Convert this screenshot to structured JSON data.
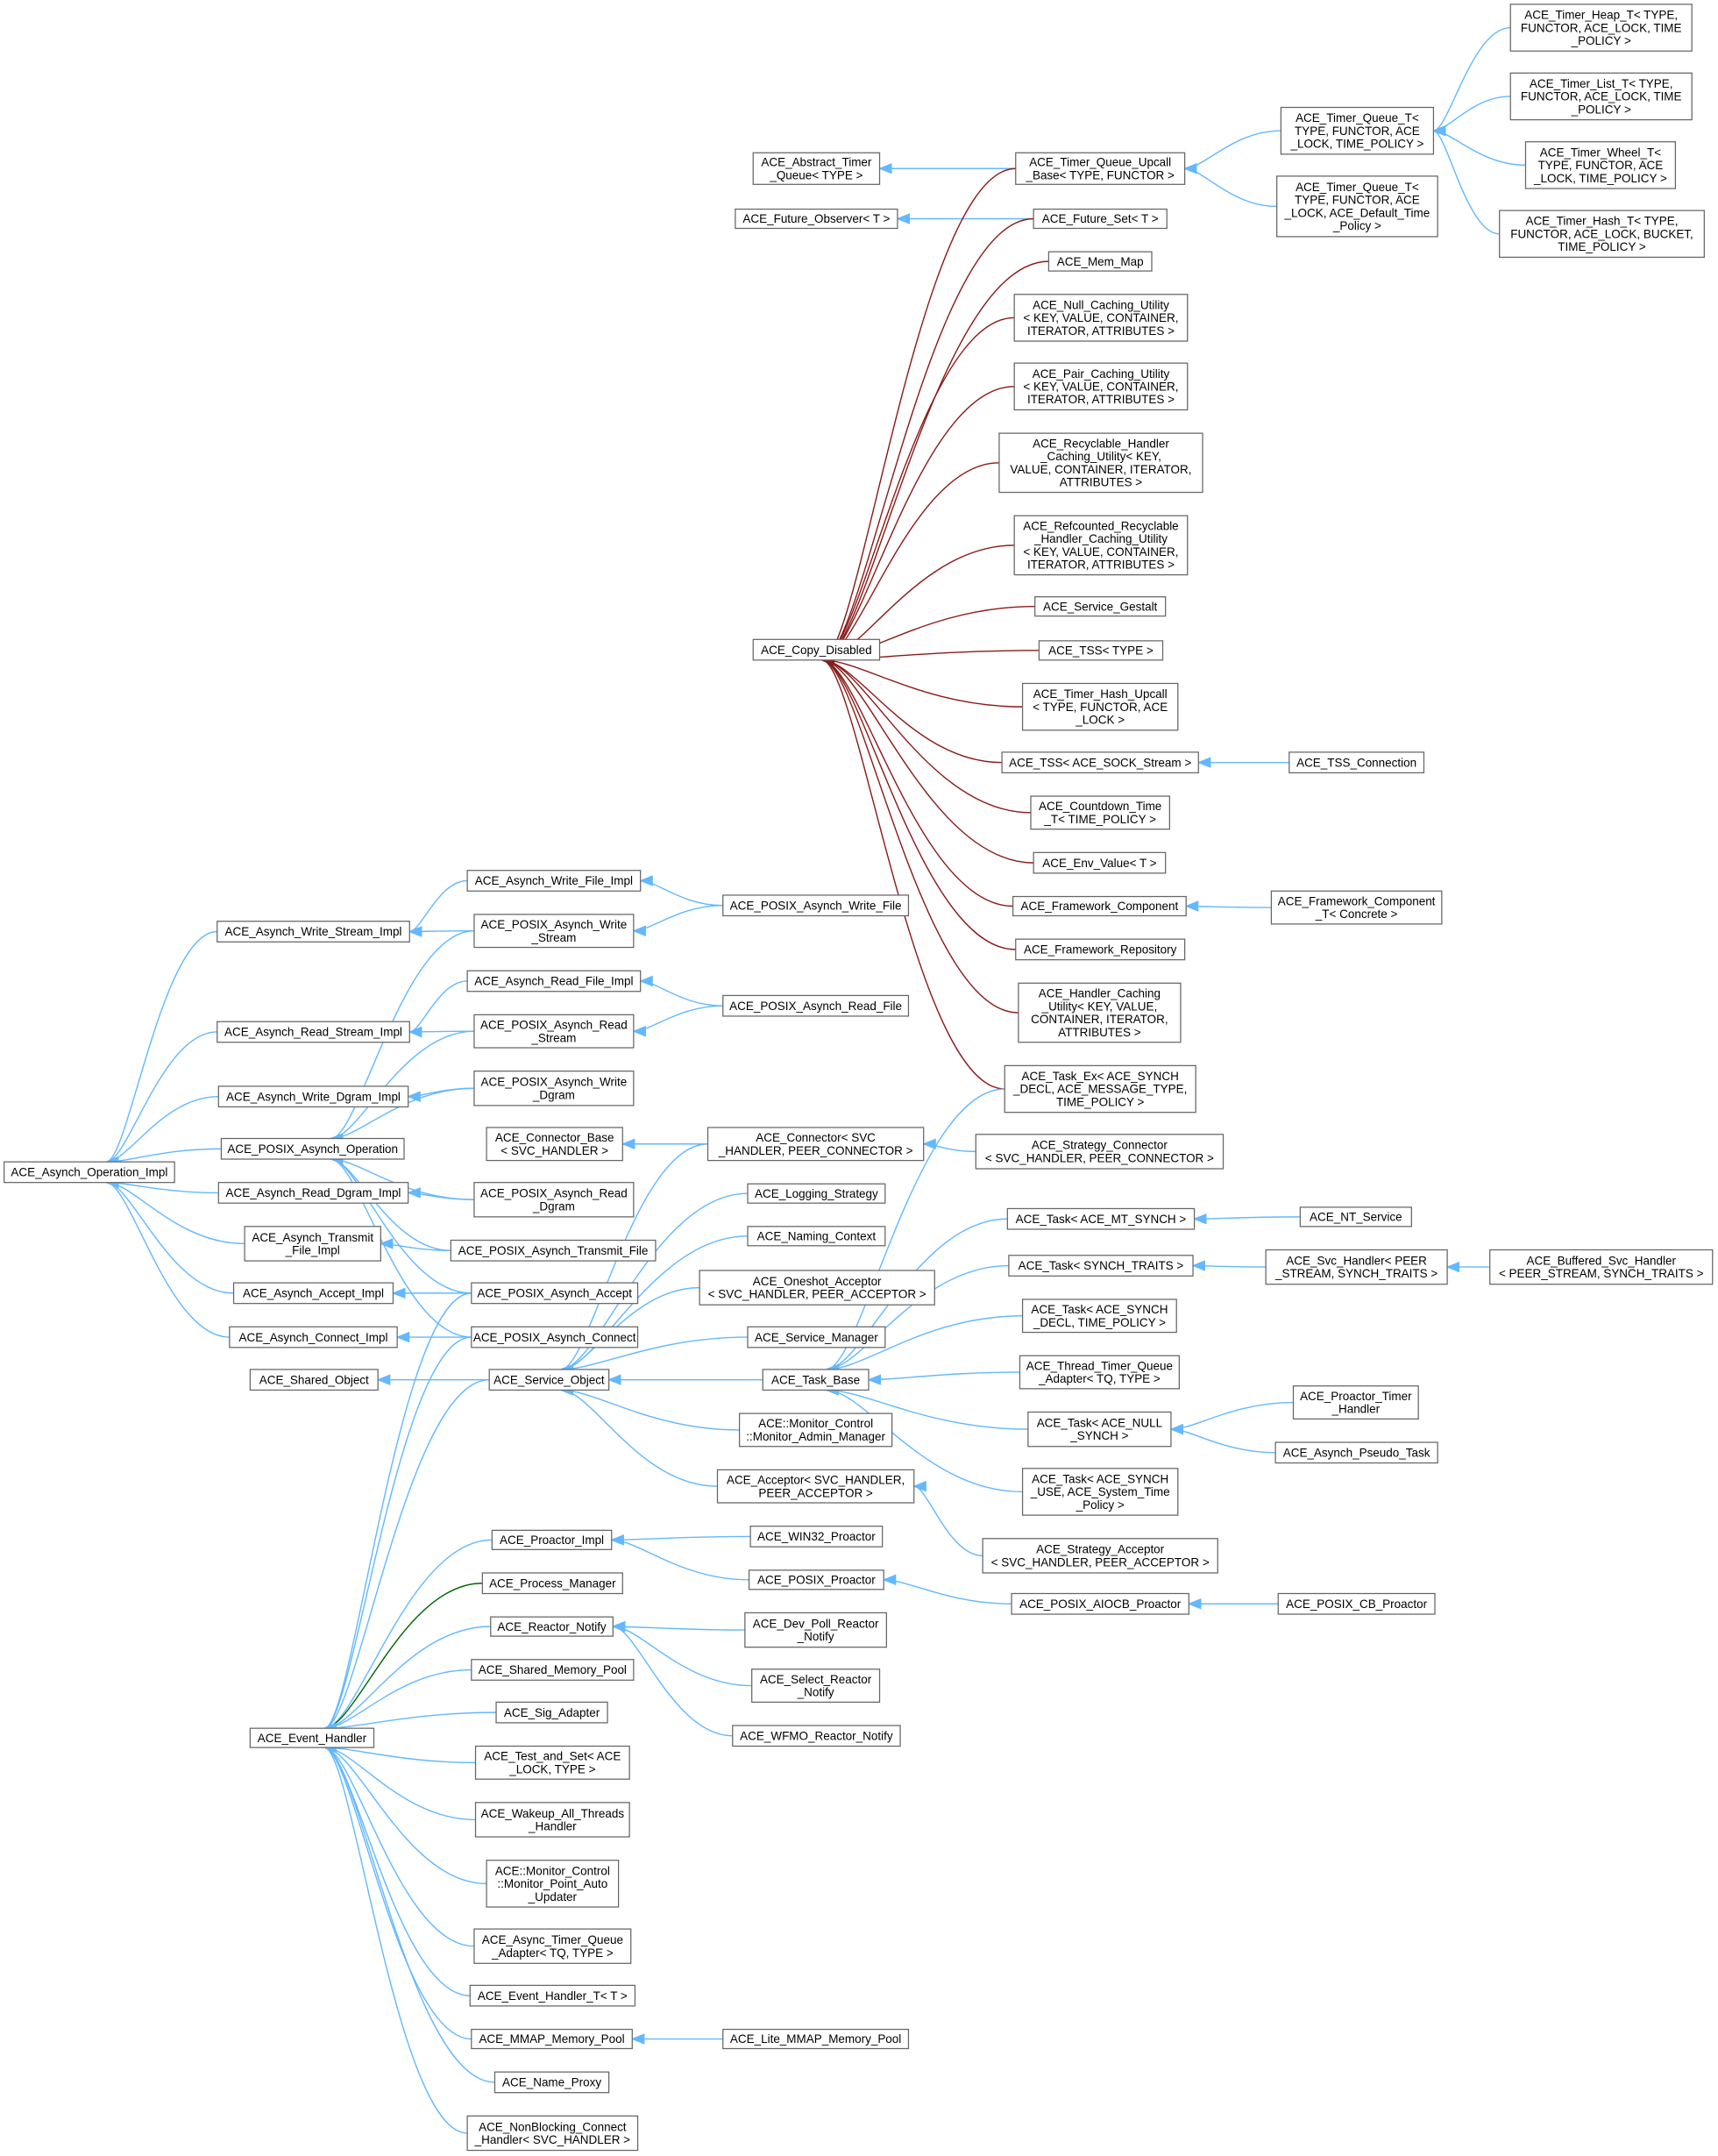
{
  "colors": {
    "public": "#63b8ff",
    "protected": "#006400",
    "private": "#8b1a1a",
    "node_border": "#666666"
  },
  "nodes": {
    "heap": [
      "ACE_Timer_Heap_T< TYPE,",
      "FUNCTOR, ACE_LOCK, TIME",
      "_POLICY >"
    ],
    "list": [
      "ACE_Timer_List_T< TYPE,",
      "FUNCTOR, ACE_LOCK, TIME",
      "_POLICY >"
    ],
    "wheel": [
      "ACE_Timer_Wheel_T<",
      "TYPE, FUNCTOR, ACE",
      "_LOCK, TIME_POLICY >"
    ],
    "hash": [
      "ACE_Timer_Hash_T< TYPE,",
      "FUNCTOR, ACE_LOCK, BUCKET,",
      "TIME_POLICY >"
    ],
    "tq": [
      "ACE_Timer_Queue_T<",
      "TYPE, FUNCTOR, ACE",
      "_LOCK, TIME_POLICY >"
    ],
    "tqd": [
      "ACE_Timer_Queue_T<",
      "TYPE, FUNCTOR, ACE",
      "_LOCK, ACE_Default_Time",
      "_Policy >"
    ],
    "upcall": [
      "ACE_Timer_Queue_Upcall",
      "_Base< TYPE, FUNCTOR >"
    ],
    "abstq": [
      "ACE_Abstract_Timer",
      "_Queue< TYPE >"
    ],
    "futobs": [
      "ACE_Future_Observer< T >"
    ],
    "futset": [
      "ACE_Future_Set< T >"
    ],
    "memmap": [
      "ACE_Mem_Map"
    ],
    "nullcache": [
      "ACE_Null_Caching_Utility",
      "< KEY, VALUE, CONTAINER,",
      "ITERATOR, ATTRIBUTES >"
    ],
    "paircache": [
      "ACE_Pair_Caching_Utility",
      "< KEY, VALUE, CONTAINER,",
      "ITERATOR, ATTRIBUTES >"
    ],
    "recyc": [
      "ACE_Recyclable_Handler",
      "_Caching_Utility< KEY,",
      "VALUE, CONTAINER, ITERATOR,",
      "ATTRIBUTES >"
    ],
    "refc": [
      "ACE_Refcounted_Recyclable",
      "_Handler_Caching_Utility",
      "< KEY, VALUE, CONTAINER,",
      "ITERATOR, ATTRIBUTES >"
    ],
    "gestalt": [
      "ACE_Service_Gestalt"
    ],
    "copy": [
      "ACE_Copy_Disabled"
    ],
    "tss": [
      "ACE_TSS< TYPE >"
    ],
    "hashup": [
      "ACE_Timer_Hash_Upcall",
      "< TYPE, FUNCTOR, ACE",
      "_LOCK >"
    ],
    "tsssock": [
      "ACE_TSS< ACE_SOCK_Stream >"
    ],
    "tssconn": [
      "ACE_TSS_Connection"
    ],
    "countdown": [
      "ACE_Countdown_Time",
      "_T< TIME_POLICY >"
    ],
    "env": [
      "ACE_Env_Value< T >"
    ],
    "fwc": [
      "ACE_Framework_Component"
    ],
    "fwct": [
      "ACE_Framework_Component",
      "_T< Concrete >"
    ],
    "fwr": [
      "ACE_Framework_Repository"
    ],
    "handcache": [
      "ACE_Handler_Caching",
      "_Utility< KEY, VALUE,",
      "CONTAINER, ITERATOR,",
      "ATTRIBUTES >"
    ],
    "taskex": [
      "ACE_Task_Ex< ACE_SYNCH",
      "_DECL, ACE_MESSAGE_TYPE,",
      "TIME_POLICY >"
    ],
    "stratconn": [
      "ACE_Strategy_Connector",
      "< SVC_HANDLER, PEER_CONNECTOR >"
    ],
    "conn": [
      "ACE_Connector< SVC",
      "_HANDLER, PEER_CONNECTOR >"
    ],
    "connbase": [
      "ACE_Connector_Base",
      "< SVC_HANDLER >"
    ],
    "logstrat": [
      "ACE_Logging_Strategy"
    ],
    "naming": [
      "ACE_Naming_Context"
    ],
    "oneshot": [
      "ACE_Oneshot_Acceptor",
      "< SVC_HANDLER, PEER_ACCEPTOR >"
    ],
    "svcmgr": [
      "ACE_Service_Manager"
    ],
    "taskbase": [
      "ACE_Task_Base"
    ],
    "svcobj": [
      "ACE_Service_Object"
    ],
    "sharedobj": [
      "ACE_Shared_Object"
    ],
    "monadmin": [
      "ACE::Monitor_Control",
      "::Monitor_Admin_Manager"
    ],
    "acceptor": [
      "ACE_Acceptor< SVC_HANDLER,",
      "PEER_ACCEPTOR >"
    ],
    "taskmt": [
      "ACE_Task< ACE_MT_SYNCH >"
    ],
    "ntsvc": [
      "ACE_NT_Service"
    ],
    "tasktraits": [
      "ACE_Task< SYNCH_TRAITS >"
    ],
    "svch": [
      "ACE_Svc_Handler< PEER",
      "_STREAM, SYNCH_TRAITS >"
    ],
    "bufsvch": [
      "ACE_Buffered_Svc_Handler",
      "< PEER_STREAM, SYNCH_TRAITS >"
    ],
    "taskdecl": [
      "ACE_Task< ACE_SYNCH",
      "_DECL, TIME_POLICY >"
    ],
    "ttqa": [
      "ACE_Thread_Timer_Queue",
      "_Adapter< TQ, TYPE >"
    ],
    "tasknull": [
      "ACE_Task< ACE_NULL",
      "_SYNCH >"
    ],
    "protimer": [
      "ACE_Proactor_Timer",
      "_Handler"
    ],
    "pseudo": [
      "ACE_Asynch_Pseudo_Task"
    ],
    "taskuse": [
      "ACE_Task< ACE_SYNCH",
      "_USE, ACE_System_Time",
      "_Policy >"
    ],
    "stratacc": [
      "ACE_Strategy_Acceptor",
      "< SVC_HANDLER, PEER_ACCEPTOR >"
    ],
    "win32pro": [
      "ACE_WIN32_Proactor"
    ],
    "posixpro": [
      "ACE_POSIX_Proactor"
    ],
    "aiocb": [
      "ACE_POSIX_AIOCB_Proactor"
    ],
    "cbpro": [
      "ACE_POSIX_CB_Proactor"
    ],
    "proimpl": [
      "ACE_Proactor_Impl"
    ],
    "procmgr": [
      "ACE_Process_Manager"
    ],
    "reactnot": [
      "ACE_Reactor_Notify"
    ],
    "devpoll": [
      "ACE_Dev_Poll_Reactor",
      "_Notify"
    ],
    "selreact": [
      "ACE_Select_Reactor",
      "_Notify"
    ],
    "wfmo": [
      "ACE_WFMO_Reactor_Notify"
    ],
    "shmem": [
      "ACE_Shared_Memory_Pool"
    ],
    "sigad": [
      "ACE_Sig_Adapter"
    ],
    "evh": [
      "ACE_Event_Handler"
    ],
    "testset": [
      "ACE_Test_and_Set< ACE",
      "_LOCK, TYPE >"
    ],
    "wakeup": [
      "ACE_Wakeup_All_Threads",
      "_Handler"
    ],
    "monpoint": [
      "ACE::Monitor_Control",
      "::Monitor_Point_Auto",
      "_Updater"
    ],
    "atqa": [
      "ACE_Async_Timer_Queue",
      "_Adapter< TQ, TYPE >"
    ],
    "evht": [
      "ACE_Event_Handler_T< T >"
    ],
    "mmap": [
      "ACE_MMAP_Memory_Pool"
    ],
    "litemmap": [
      "ACE_Lite_MMAP_Memory_Pool"
    ],
    "nameproxy": [
      "ACE_Name_Proxy"
    ],
    "nbconn": [
      "ACE_NonBlocking_Connect",
      "_Handler< SVC_HANDLER >"
    ],
    "awfi": [
      "ACE_Asynch_Write_File_Impl"
    ],
    "pawf": [
      "ACE_POSIX_Asynch_Write_File"
    ],
    "awsi": [
      "ACE_Asynch_Write_Stream_Impl"
    ],
    "paws": [
      "ACE_POSIX_Asynch_Write",
      "_Stream"
    ],
    "arfi": [
      "ACE_Asynch_Read_File_Impl"
    ],
    "parf": [
      "ACE_POSIX_Asynch_Read_File"
    ],
    "arsi": [
      "ACE_Asynch_Read_Stream_Impl"
    ],
    "pars": [
      "ACE_POSIX_Asynch_Read",
      "_Stream"
    ],
    "awdi": [
      "ACE_Asynch_Write_Dgram_Impl"
    ],
    "pawd": [
      "ACE_POSIX_Asynch_Write",
      "_Dgram"
    ],
    "pao": [
      "ACE_POSIX_Asynch_Operation"
    ],
    "aoi": [
      "ACE_Asynch_Operation_Impl"
    ],
    "ardi": [
      "ACE_Asynch_Read_Dgram_Impl"
    ],
    "pard": [
      "ACE_POSIX_Asynch_Read",
      "_Dgram"
    ],
    "atfi": [
      "ACE_Asynch_Transmit",
      "_File_Impl"
    ],
    "patf": [
      "ACE_POSIX_Asynch_Transmit_File"
    ],
    "aai": [
      "ACE_Asynch_Accept_Impl"
    ],
    "paa": [
      "ACE_POSIX_Asynch_Accept"
    ],
    "aci": [
      "ACE_Asynch_Connect_Impl"
    ],
    "pac": [
      "ACE_POSIX_Asynch_Connect"
    ]
  },
  "edges": [
    [
      "heap",
      "tq",
      "public"
    ],
    [
      "list",
      "tq",
      "public"
    ],
    [
      "wheel",
      "tq",
      "public"
    ],
    [
      "hash",
      "tq",
      "public"
    ],
    [
      "tq",
      "upcall",
      "public"
    ],
    [
      "tqd",
      "upcall",
      "public"
    ],
    [
      "upcall",
      "abstq",
      "public"
    ],
    [
      "futset",
      "futobs",
      "public"
    ],
    [
      "upcall",
      "copy",
      "private"
    ],
    [
      "futset",
      "copy",
      "private"
    ],
    [
      "memmap",
      "copy",
      "private"
    ],
    [
      "nullcache",
      "copy",
      "private"
    ],
    [
      "paircache",
      "copy",
      "private"
    ],
    [
      "recyc",
      "copy",
      "private"
    ],
    [
      "refc",
      "copy",
      "private"
    ],
    [
      "gestalt",
      "copy",
      "private"
    ],
    [
      "tss",
      "copy",
      "private"
    ],
    [
      "hashup",
      "copy",
      "private"
    ],
    [
      "tsssock",
      "copy",
      "private"
    ],
    [
      "countdown",
      "copy",
      "private"
    ],
    [
      "env",
      "copy",
      "private"
    ],
    [
      "fwc",
      "copy",
      "private"
    ],
    [
      "fwr",
      "copy",
      "private"
    ],
    [
      "handcache",
      "copy",
      "private"
    ],
    [
      "taskex",
      "copy",
      "private"
    ],
    [
      "tssconn",
      "tsssock",
      "public"
    ],
    [
      "fwct",
      "fwc",
      "public"
    ],
    [
      "stratconn",
      "conn",
      "public"
    ],
    [
      "conn",
      "connbase",
      "public"
    ],
    [
      "conn",
      "svcobj",
      "public"
    ],
    [
      "logstrat",
      "svcobj",
      "public"
    ],
    [
      "naming",
      "svcobj",
      "public"
    ],
    [
      "oneshot",
      "svcobj",
      "public"
    ],
    [
      "svcmgr",
      "svcobj",
      "public"
    ],
    [
      "taskbase",
      "svcobj",
      "public"
    ],
    [
      "monadmin",
      "svcobj",
      "public"
    ],
    [
      "acceptor",
      "svcobj",
      "public"
    ],
    [
      "svcobj",
      "sharedobj",
      "public"
    ],
    [
      "svcobj",
      "evh",
      "public"
    ],
    [
      "taskex",
      "taskbase",
      "public"
    ],
    [
      "taskmt",
      "taskbase",
      "public"
    ],
    [
      "tasktraits",
      "taskbase",
      "public"
    ],
    [
      "taskdecl",
      "taskbase",
      "public"
    ],
    [
      "ttqa",
      "taskbase",
      "public"
    ],
    [
      "tasknull",
      "taskbase",
      "public"
    ],
    [
      "taskuse",
      "taskbase",
      "public"
    ],
    [
      "ntsvc",
      "taskmt",
      "public"
    ],
    [
      "svch",
      "tasktraits",
      "public"
    ],
    [
      "bufsvch",
      "svch",
      "public"
    ],
    [
      "protimer",
      "tasknull",
      "public"
    ],
    [
      "pseudo",
      "tasknull",
      "public"
    ],
    [
      "stratacc",
      "acceptor",
      "public"
    ],
    [
      "win32pro",
      "proimpl",
      "public"
    ],
    [
      "posixpro",
      "proimpl",
      "public"
    ],
    [
      "aiocb",
      "posixpro",
      "public"
    ],
    [
      "cbpro",
      "aiocb",
      "public"
    ],
    [
      "devpoll",
      "reactnot",
      "public"
    ],
    [
      "selreact",
      "reactnot",
      "public"
    ],
    [
      "wfmo",
      "reactnot",
      "public"
    ],
    [
      "proimpl",
      "evh",
      "public"
    ],
    [
      "procmgr",
      "evh",
      "protected"
    ],
    [
      "reactnot",
      "evh",
      "public"
    ],
    [
      "shmem",
      "evh",
      "public"
    ],
    [
      "sigad",
      "evh",
      "public"
    ],
    [
      "testset",
      "evh",
      "public"
    ],
    [
      "wakeup",
      "evh",
      "public"
    ],
    [
      "monpoint",
      "evh",
      "public"
    ],
    [
      "atqa",
      "evh",
      "public"
    ],
    [
      "evht",
      "evh",
      "public"
    ],
    [
      "mmap",
      "evh",
      "public"
    ],
    [
      "nameproxy",
      "evh",
      "public"
    ],
    [
      "nbconn",
      "evh",
      "public"
    ],
    [
      "paa",
      "evh",
      "public"
    ],
    [
      "pac",
      "evh",
      "public"
    ],
    [
      "litemmap",
      "mmap",
      "public"
    ],
    [
      "pawf",
      "awfi",
      "public"
    ],
    [
      "pawf",
      "paws",
      "public"
    ],
    [
      "awfi",
      "awsi",
      "public"
    ],
    [
      "paws",
      "awsi",
      "public"
    ],
    [
      "paws",
      "pao",
      "public"
    ],
    [
      "parf",
      "arfi",
      "public"
    ],
    [
      "parf",
      "pars",
      "public"
    ],
    [
      "arfi",
      "arsi",
      "public"
    ],
    [
      "pars",
      "arsi",
      "public"
    ],
    [
      "pars",
      "pao",
      "public"
    ],
    [
      "pawd",
      "awdi",
      "public"
    ],
    [
      "pawd",
      "pao",
      "public"
    ],
    [
      "pard",
      "ardi",
      "public"
    ],
    [
      "pard",
      "pao",
      "public"
    ],
    [
      "patf",
      "atfi",
      "public"
    ],
    [
      "patf",
      "pao",
      "public"
    ],
    [
      "paa",
      "aai",
      "public"
    ],
    [
      "paa",
      "pao",
      "public"
    ],
    [
      "pac",
      "aci",
      "public"
    ],
    [
      "pac",
      "pao",
      "public"
    ],
    [
      "awsi",
      "aoi",
      "public"
    ],
    [
      "arsi",
      "aoi",
      "public"
    ],
    [
      "awdi",
      "aoi",
      "public"
    ],
    [
      "pao",
      "aoi",
      "public"
    ],
    [
      "ardi",
      "aoi",
      "public"
    ],
    [
      "atfi",
      "aoi",
      "public"
    ],
    [
      "aai",
      "aoi",
      "public"
    ],
    [
      "aci",
      "aoi",
      "public"
    ]
  ]
}
